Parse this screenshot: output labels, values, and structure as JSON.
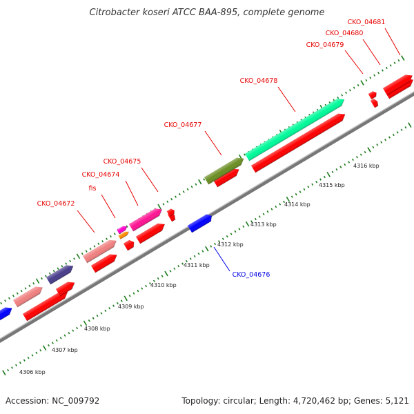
{
  "map": {
    "title": "Citrobacter koseri ATCC BAA-895, complete genome",
    "accession": "Accession: NC_009792",
    "summary": "Topology: circular; Length: 4,720,462 bp; Genes: 5,121",
    "colors": {
      "backbone": "#8c8c8c",
      "cds_track": "#ff0000",
      "cds_forward_strand": "#ff0000",
      "cds_reverse_strand": "#0000ff",
      "tick": "#1a7a1a",
      "label_forward": "#e60000",
      "label_reverse": "#0000e6"
    },
    "tick_labels": [
      "4306 kbp",
      "4307 kbp",
      "4308 kbp",
      "4309 kbp",
      "4310 kbp",
      "4311 kbp",
      "4312 kbp",
      "4313 kbp",
      "4314 kbp",
      "4315 kbp",
      "4316 kbp"
    ],
    "gene_labels": [
      {
        "text": "CKO_04672",
        "strand": "forward"
      },
      {
        "text": "fis",
        "strand": "forward"
      },
      {
        "text": "CKO_04674",
        "strand": "forward"
      },
      {
        "text": "CKO_04675",
        "strand": "forward"
      },
      {
        "text": "CKO_04676",
        "strand": "reverse"
      },
      {
        "text": "CKO_04677",
        "strand": "forward"
      },
      {
        "text": "CKO_04678",
        "strand": "forward"
      },
      {
        "text": "CKO_04679",
        "strand": "forward"
      },
      {
        "text": "CKO_04680",
        "strand": "forward"
      },
      {
        "text": "CKO_04681",
        "strand": "forward"
      }
    ],
    "features_outer": [
      {
        "color": "#0000ff"
      },
      {
        "color": "#f08080"
      },
      {
        "color": "#483d8b"
      },
      {
        "color": "#f08080"
      },
      {
        "color": "#ff8c00"
      },
      {
        "color": "#ff00cc"
      },
      {
        "color": "#ff1493"
      },
      {
        "color": "#ff0000"
      },
      {
        "color": "#0000ff"
      },
      {
        "color": "#6b8e23"
      },
      {
        "color": "#00fa9a"
      },
      {
        "color": "#ff0000"
      },
      {
        "color": "#ff0000"
      }
    ]
  }
}
